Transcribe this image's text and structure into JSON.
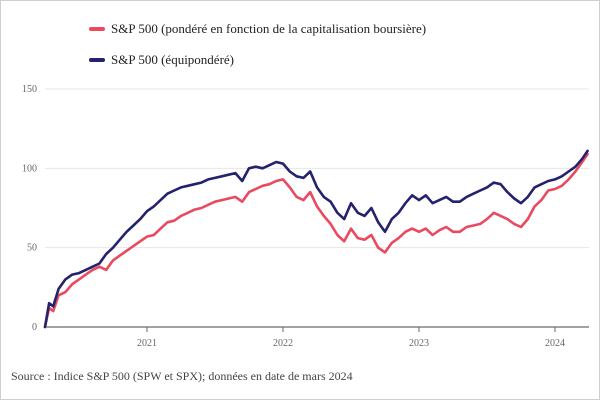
{
  "chart_data": {
    "type": "line",
    "title": "",
    "xlabel": "",
    "ylabel": "",
    "ylim": [
      0,
      150
    ],
    "yticks": [
      0,
      50,
      100,
      150
    ],
    "xlim": [
      2020.25,
      2024.25
    ],
    "xticks": [
      2021,
      2022,
      2023,
      2024
    ],
    "xtick_labels": [
      "2021",
      "2022",
      "2023",
      "2024"
    ],
    "grid": true,
    "legend_position": "top-left",
    "series": [
      {
        "name": "S&P 500 (pondéré en fonction de la capitalisation boursière)",
        "color": "#e94a5f",
        "x": [
          2020.25,
          2020.28,
          2020.31,
          2020.35,
          2020.4,
          2020.45,
          2020.5,
          2020.55,
          2020.6,
          2020.65,
          2020.7,
          2020.75,
          2020.8,
          2020.85,
          2020.9,
          2020.95,
          2021.0,
          2021.05,
          2021.1,
          2021.15,
          2021.2,
          2021.25,
          2021.3,
          2021.35,
          2021.4,
          2021.45,
          2021.5,
          2021.55,
          2021.6,
          2021.65,
          2021.7,
          2021.75,
          2021.8,
          2021.85,
          2021.9,
          2021.95,
          2022.0,
          2022.05,
          2022.1,
          2022.15,
          2022.2,
          2022.25,
          2022.3,
          2022.35,
          2022.4,
          2022.45,
          2022.5,
          2022.55,
          2022.6,
          2022.65,
          2022.7,
          2022.75,
          2022.8,
          2022.85,
          2022.9,
          2022.95,
          2023.0,
          2023.05,
          2023.1,
          2023.15,
          2023.2,
          2023.25,
          2023.3,
          2023.35,
          2023.4,
          2023.45,
          2023.5,
          2023.55,
          2023.6,
          2023.65,
          2023.7,
          2023.75,
          2023.8,
          2023.85,
          2023.9,
          2023.95,
          2024.0,
          2024.05,
          2024.1,
          2024.15,
          2024.2,
          2024.24
        ],
        "values": [
          0,
          12,
          10,
          20,
          22,
          27,
          30,
          33,
          36,
          38,
          36,
          42,
          45,
          48,
          51,
          54,
          57,
          58,
          62,
          66,
          67,
          70,
          72,
          74,
          75,
          77,
          79,
          80,
          81,
          82,
          79,
          85,
          87,
          89,
          90,
          92,
          93,
          88,
          82,
          80,
          85,
          76,
          70,
          65,
          58,
          54,
          62,
          56,
          55,
          58,
          50,
          47,
          53,
          56,
          60,
          62,
          60,
          62,
          58,
          61,
          63,
          60,
          60,
          63,
          64,
          65,
          68,
          72,
          70,
          68,
          65,
          63,
          68,
          76,
          80,
          86,
          87,
          89,
          93,
          98,
          104,
          109
        ]
      },
      {
        "name": "S&P 500 (équipondéré)",
        "color": "#24226e",
        "x": [
          2020.25,
          2020.28,
          2020.31,
          2020.35,
          2020.4,
          2020.45,
          2020.5,
          2020.55,
          2020.6,
          2020.65,
          2020.7,
          2020.75,
          2020.8,
          2020.85,
          2020.9,
          2020.95,
          2021.0,
          2021.05,
          2021.1,
          2021.15,
          2021.2,
          2021.25,
          2021.3,
          2021.35,
          2021.4,
          2021.45,
          2021.5,
          2021.55,
          2021.6,
          2021.65,
          2021.7,
          2021.75,
          2021.8,
          2021.85,
          2021.9,
          2021.95,
          2022.0,
          2022.05,
          2022.1,
          2022.15,
          2022.2,
          2022.25,
          2022.3,
          2022.35,
          2022.4,
          2022.45,
          2022.5,
          2022.55,
          2022.6,
          2022.65,
          2022.7,
          2022.75,
          2022.8,
          2022.85,
          2022.9,
          2022.95,
          2023.0,
          2023.05,
          2023.1,
          2023.15,
          2023.2,
          2023.25,
          2023.3,
          2023.35,
          2023.4,
          2023.45,
          2023.5,
          2023.55,
          2023.6,
          2023.65,
          2023.7,
          2023.75,
          2023.8,
          2023.85,
          2023.9,
          2023.95,
          2024.0,
          2024.05,
          2024.1,
          2024.15,
          2024.2,
          2024.24
        ],
        "values": [
          0,
          15,
          13,
          24,
          30,
          33,
          34,
          36,
          38,
          40,
          46,
          50,
          55,
          60,
          64,
          68,
          73,
          76,
          80,
          84,
          86,
          88,
          89,
          90,
          91,
          93,
          94,
          95,
          96,
          97,
          92,
          100,
          101,
          100,
          102,
          104,
          103,
          98,
          95,
          94,
          98,
          88,
          82,
          79,
          72,
          68,
          78,
          72,
          70,
          75,
          66,
          60,
          68,
          72,
          78,
          83,
          80,
          83,
          78,
          80,
          82,
          79,
          79,
          82,
          84,
          86,
          88,
          91,
          90,
          85,
          81,
          78,
          82,
          88,
          90,
          92,
          93,
          95,
          98,
          101,
          106,
          111
        ]
      }
    ],
    "source": "Source : Indice S&P 500 (SPW et SPX); données en date de mars 2024"
  }
}
